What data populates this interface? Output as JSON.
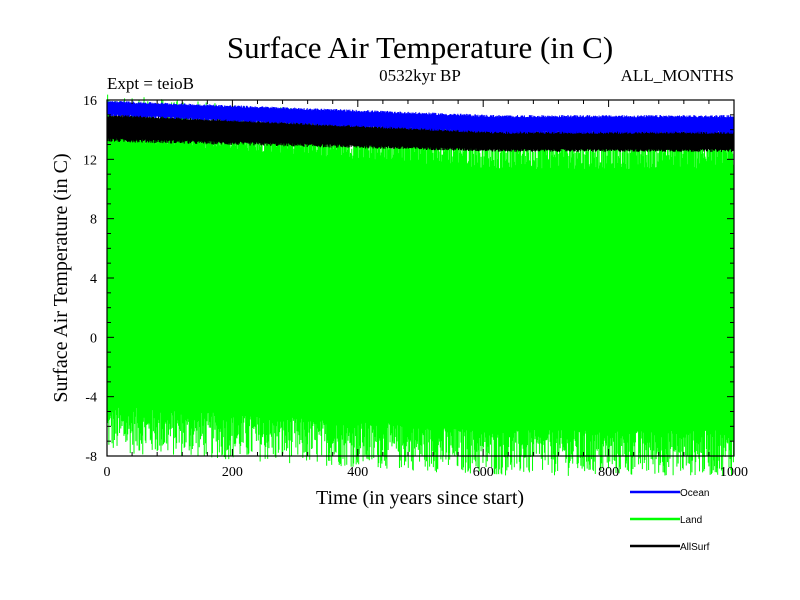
{
  "chart_data": {
    "type": "line",
    "title": "Surface Air Temperature (in C)",
    "subtitle_left": "Expt = teioB",
    "subtitle_center": "0532kyr BP",
    "subtitle_right": "ALL_MONTHS",
    "xlabel": "Time (in years since start)",
    "ylabel": "Surface Air Temperature (in C)",
    "xlim": [
      0,
      1000
    ],
    "ylim": [
      -8,
      16
    ],
    "x_ticks": [
      0,
      200,
      400,
      600,
      800,
      1000
    ],
    "y_ticks": [
      -8,
      -4,
      0,
      4,
      8,
      12,
      16
    ],
    "x_tick_labels": [
      "0",
      "200",
      "400",
      "600",
      "800",
      "1000"
    ],
    "y_tick_labels": [
      "-8",
      "-4",
      "0",
      "4",
      "8",
      "12",
      "16"
    ],
    "series": [
      {
        "name": "Ocean",
        "color": "#0000ff",
        "start_low": 15.0,
        "start_high": 15.9,
        "end_low": 13.8,
        "end_high": 14.9,
        "years": 1000
      },
      {
        "name": "Land",
        "color": "#00ff00",
        "start_low": -6.2,
        "start_high": 14.8,
        "end_low": -7.8,
        "end_high": 12.9,
        "years": 1000
      },
      {
        "name": "AllSurf",
        "color": "#000000",
        "start_low": 13.3,
        "start_high": 15.0,
        "end_low": 12.6,
        "end_high": 13.9,
        "years": 1000
      }
    ]
  }
}
